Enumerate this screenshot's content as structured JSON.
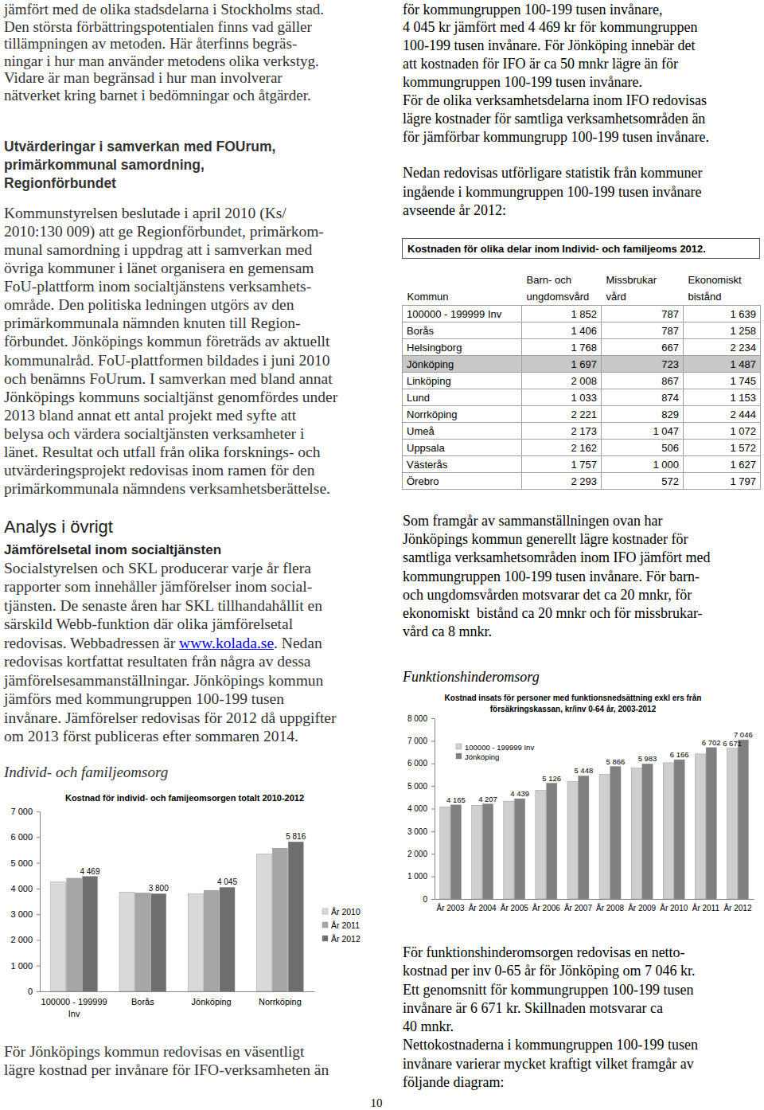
{
  "left_column": {
    "intro": [
      "jämfört med de olika stadsdelarna i Stockholms stad.",
      "Den största förbättringspotentialen finns vad gäller",
      "tillämpningen av metoden. Här återfinns begräs-",
      "ningar i hur man använder metodens olika verkstyg.",
      "Vidare är man begränsad i hur man involverar",
      "nätverket kring barnet i bedömningar och åtgärder."
    ],
    "section_heading": [
      "Utvärderingar i samverkan med FOUrum,",
      "primärkommunal samordning,",
      "Regionförbundet"
    ],
    "section_text": [
      "Kommunstyrelsen beslutade i april 2010 (Ks/",
      "2010:130 009) att ge Regionförbundet, primärkom-",
      "munal samordning i uppdrag att i samverkan med",
      "övriga kommuner i länet organisera en gemensam",
      "FoU-plattform inom socialtjänstens verksamhets-",
      "område. Den politiska ledningen utgörs av den",
      "primärkommunala nämnden knuten till Region-",
      "förbundet. Jönköpings kommun företräds av aktuellt",
      "kommunalråd. FoU-plattformen bildades i juni 2010",
      "och benämns FoUrum. I samverkan med bland annat",
      "Jönköpings kommuns socialtjänst genomfördes under",
      "2013 bland annat ett antal projekt med syfte att",
      "belysa och värdera socialtjänsten verksamheter i",
      "länet. Resultat och utfall från olika forsknings- och",
      "utvärderingsprojekt redovisas inom ramen för den",
      "primärkommunala nämndens verksamhetsberättelse."
    ],
    "analysis_heading": "Analys i övrigt",
    "subheading": "Jämförelsetal inom socialtjänsten",
    "analysis_text": [
      "Socialstyrelsen och SKL producerar varje år flera",
      "rapporter som innehåller jämförelser inom social-",
      "tjänsten. De senaste åren har SKL tillhandahållit en",
      "särskild Webb-funktion där olika jämförelsetal",
      "redovisas. Webbadressen är www.kolada.se. Nedan",
      "redovisas kortfattat resultaten från några av dessa",
      "jämförelsesammanställningar. Jönköpings kommun",
      "jämförs med kommungruppen 100-199 tusen",
      "invånare. Jämförelser redovisas för 2012 då uppgifter",
      "om 2013 först publiceras efter sommaren 2014."
    ],
    "link": "www.kolada.se",
    "chart_caption": "Individ- och familjeomsorg",
    "after_chart_text": [
      "För Jönköpings kommun redovisas en väsentligt",
      "lägre kostnad per invånare för IFO-verksamheten än"
    ]
  },
  "right_column": {
    "continued_text": [
      "för kommungruppen 100-199 tusen invånare,",
      "4 045 kr jämfört med 4 469 kr för kommungruppen",
      "100-199 tusen invånare. För Jönköping innebär det",
      "att kostnaden för IFO är ca 50 mnkr lägre än för",
      "kommungruppen 100-199 tusen invånare.",
      "För de olika verksamhetsdelarna inom IFO redovisas",
      "lägre kostnader för samtliga verksamhetsområden än",
      "för jämförbar kommungrupp 100-199 tusen invånare."
    ],
    "table_intro": [
      "Nedan redovisas utförligare statistik från kommuner",
      "ingående i kommungruppen 100-199 tusen invånare",
      "avseende år 2012:"
    ],
    "table": {
      "title": "Kostnaden för olika delar inom Individ- och familjeoms 2012.",
      "header": [
        [
          "Kommun"
        ],
        [
          "Barn- och",
          "ungdomsvård"
        ],
        [
          "Missbrukar",
          "vård"
        ],
        [
          "Ekonomiskt",
          "bistånd"
        ]
      ],
      "rows": [
        [
          "100000 - 199999 Inv",
          "1 852",
          "787",
          "1 639"
        ],
        [
          "Borås",
          "1 406",
          "787",
          "1 258"
        ],
        [
          "Helsingborg",
          "1 768",
          "667",
          "2 234"
        ],
        [
          "Jönköping",
          "1 697",
          "723",
          "1 487"
        ],
        [
          "Linköping",
          "2 008",
          "867",
          "1 745"
        ],
        [
          "Lund",
          "1 033",
          "874",
          "1 153"
        ],
        [
          "Norrköping",
          "2 221",
          "829",
          "2 444"
        ],
        [
          "Umeå",
          "2 173",
          "1 047",
          "1 072"
        ],
        [
          "Uppsala",
          "2 162",
          "506",
          "1 572"
        ],
        [
          "Västerås",
          "1 757",
          "1 000",
          "1 627"
        ],
        [
          "Örebro",
          "2 293",
          "572",
          "1 797"
        ]
      ]
    },
    "table_comment": [
      "Som framgår av sammanställningen ovan har",
      "Jönköpings kommun generellt lägre kostnader för",
      "samtliga verksamhetsområden inom IFO jämfört med",
      "kommungruppen 100-199 tusen invånare. För barn-",
      "och ungdomsvården motsvarar det ca 20 mnkr, för",
      "ekonomiskt  bistånd ca 20 mnkr och för missbrukar-",
      "vård ca 8 mnkr."
    ],
    "chart_caption": "Funktionshinderomsorg",
    "after_chart_text": [
      "För funktionshinderomsorgen redovisas en netto-",
      "kostnad per inv 0-65 år för Jönköping om 7 046 kr.",
      "Ett genomsnitt för kommungruppen 100-199 tusen",
      "invånare är 6 671 kr. Skillnaden motsvarar ca",
      "40 mnkr.",
      "Nettokostnaderna i kommungruppen 100-199 tusen",
      "invånare varierar mycket kraftigt vilket framgår av",
      "följande diagram:"
    ]
  },
  "page_number": "10",
  "chart_data": [
    {
      "type": "bar",
      "title": "Kostnad för individ- och famijeomsorgen totalt 2010-2012",
      "categories": [
        "100000 - 199999 Inv",
        "Borås",
        "Jönköping",
        "Norrköping"
      ],
      "series": [
        {
          "name": "År 2010",
          "color": "#d9d9d9",
          "values": [
            4250,
            3860,
            3790,
            5350
          ]
        },
        {
          "name": "År 2011",
          "color": "#a6a6a6",
          "values": [
            4400,
            3830,
            3930,
            5570
          ]
        },
        {
          "name": "År 2012",
          "color": "#6e6e6e",
          "values": [
            4469,
            3800,
            4045,
            5816
          ],
          "value_labels": [
            "4 469",
            "3 800",
            "4 045",
            "5 816"
          ]
        }
      ],
      "ylim": [
        0,
        7000
      ],
      "yticks": [
        0,
        {
          "value": 1000,
          "label": "1 000"
        },
        {
          "value": 2000,
          "label": "2 000"
        },
        {
          "value": 3000,
          "label": "3 000"
        },
        {
          "value": 4000,
          "label": "4 000"
        },
        {
          "value": 5000,
          "label": "5 000"
        },
        {
          "value": 6000,
          "label": "6 000"
        },
        {
          "value": 7000,
          "label": "7 000"
        }
      ],
      "data_labels": true,
      "legend": "right",
      "grid": false
    },
    {
      "type": "bar",
      "title": "Kostnad insats för personer med funktionsnedsättning exkl ers från försäkringskassan, kr/inv 0-64 år, 2003-2012",
      "categories": [
        "År 2003",
        "År 2004",
        "År 2005",
        "År 2006",
        "År 2007",
        "År 2008",
        "År 2009",
        "År 2010",
        "År 2011",
        "År 2012"
      ],
      "series": [
        {
          "name": "100000 - 199999 Inv",
          "color": "#cfcfcf",
          "values": [
            4080,
            4150,
            4330,
            4820,
            5200,
            5520,
            5800,
            6030,
            6420,
            6671
          ],
          "value_labels": [
            null,
            null,
            null,
            null,
            null,
            null,
            null,
            null,
            null,
            "6 671"
          ]
        },
        {
          "name": "Jönköping",
          "color": "#808080",
          "values": [
            4165,
            4207,
            4439,
            5126,
            5448,
            5866,
            5983,
            6166,
            6702,
            7046
          ],
          "value_labels": [
            "4 165",
            "4 207",
            "4 439",
            "5 126",
            "5 448",
            "5 866",
            "5 983",
            "6 166",
            "6 702",
            "7 046"
          ]
        }
      ],
      "ylim": [
        0,
        8000
      ],
      "yticks": [
        0,
        {
          "value": 1000,
          "label": "1 000"
        },
        {
          "value": 2000,
          "label": "2 000"
        },
        {
          "value": 3000,
          "label": "3 000"
        },
        {
          "value": 4000,
          "label": "4 000"
        },
        {
          "value": 5000,
          "label": "5 000"
        },
        {
          "value": 6000,
          "label": "6 000"
        },
        {
          "value": 7000,
          "label": "7 000"
        },
        {
          "value": 8000,
          "label": "8 000"
        }
      ],
      "data_labels": true,
      "legend": "upper left",
      "grid": false
    }
  ]
}
